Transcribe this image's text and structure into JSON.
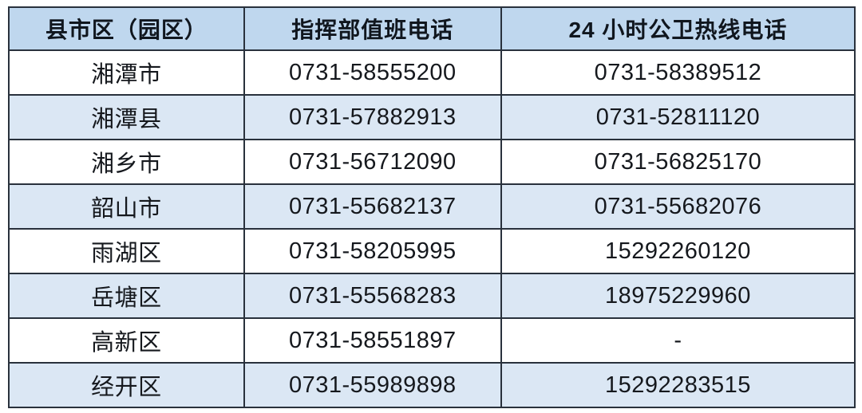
{
  "colors": {
    "page_bg": "#ffffff",
    "header_bg": "#bfd7ee",
    "row_bg": "#ffffff",
    "row_alt_bg": "#dbe7f4",
    "border": "#29313c",
    "header_text": "#10161e",
    "body_text": "#15181d"
  },
  "table": {
    "columns": [
      {
        "label": "县市区（园区）"
      },
      {
        "label": "指挥部值班电话"
      },
      {
        "label": "24 小时公卫热线电话"
      }
    ],
    "rows": [
      {
        "district": "湘潭市",
        "duty_phone": "0731-58555200",
        "hotline": "0731-58389512"
      },
      {
        "district": "湘潭县",
        "duty_phone": "0731-57882913",
        "hotline": "0731-52811120"
      },
      {
        "district": "湘乡市",
        "duty_phone": "0731-56712090",
        "hotline": "0731-56825170"
      },
      {
        "district": "韶山市",
        "duty_phone": "0731-55682137",
        "hotline": "0731-55682076"
      },
      {
        "district": "雨湖区",
        "duty_phone": "0731-58205995",
        "hotline": "15292260120"
      },
      {
        "district": "岳塘区",
        "duty_phone": "0731-55568283",
        "hotline": "18975229960"
      },
      {
        "district": "高新区",
        "duty_phone": "0731-58551897",
        "hotline": "-"
      },
      {
        "district": "经开区",
        "duty_phone": "0731-55989898",
        "hotline": "15292283515"
      }
    ]
  }
}
